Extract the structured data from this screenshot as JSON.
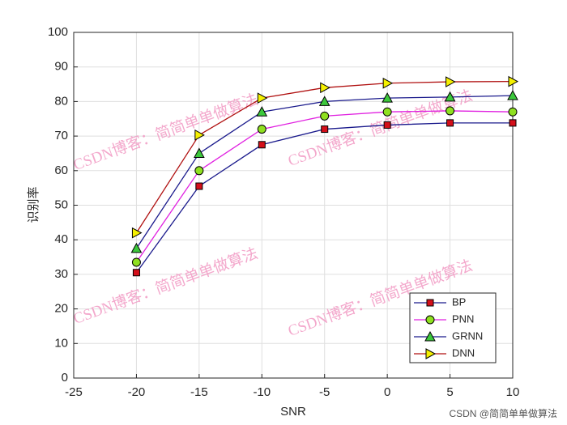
{
  "chart_data": {
    "type": "line",
    "xlabel": "SNR",
    "ylabel": "识别率",
    "x": [
      -20,
      -15,
      -10,
      -5,
      0,
      5,
      10
    ],
    "series": [
      {
        "name": "BP",
        "color": "#1a1a8c",
        "marker": "square",
        "marker_color": "#d40f1a",
        "values": [
          30.5,
          55.5,
          67.5,
          72,
          73.2,
          73.8,
          73.8
        ]
      },
      {
        "name": "PNN",
        "color": "#e020e0",
        "marker": "circle",
        "marker_color": "#8fe020",
        "values": [
          33.5,
          60,
          72,
          75.8,
          77,
          77.3,
          77
        ]
      },
      {
        "name": "GRNN",
        "color": "#1a1a8c",
        "marker": "triangle",
        "marker_color": "#3cc83c",
        "values": [
          37.5,
          65,
          77,
          80,
          81,
          81.3,
          81.7
        ]
      },
      {
        "name": "DNN",
        "color": "#b01010",
        "marker": "triangle-right",
        "marker_color": "#f5f000",
        "values": [
          42,
          70.3,
          81,
          84,
          85.3,
          85.7,
          85.8
        ]
      }
    ],
    "xlim": [
      -25,
      10
    ],
    "xticks": [
      -25,
      -20,
      -15,
      -10,
      -5,
      0,
      5,
      10
    ],
    "ylim": [
      0,
      100
    ],
    "yticks": [
      0,
      10,
      20,
      30,
      40,
      50,
      60,
      70,
      80,
      90,
      100
    ],
    "grid": true,
    "legend": "lower right",
    "watermark": "CSDN博客：简简单单做算法",
    "credit": "CSDN @简简单单做算法"
  }
}
